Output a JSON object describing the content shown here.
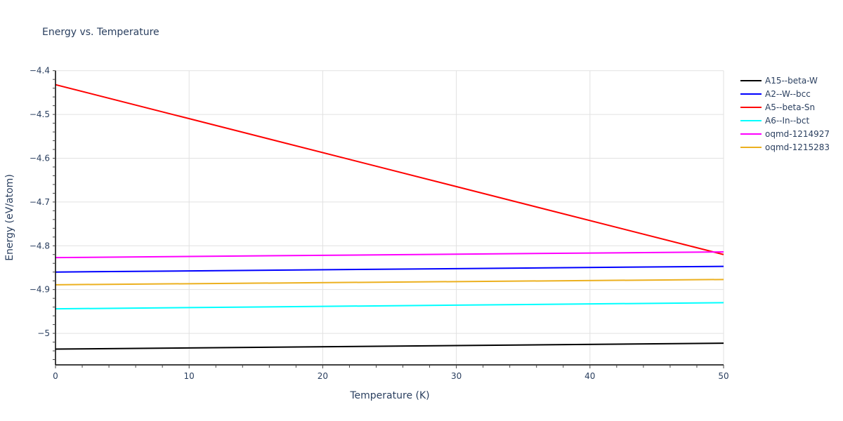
{
  "chart_data": {
    "type": "line",
    "title": "Energy vs. Temperature",
    "xlabel": "Temperature (K)",
    "ylabel": "Energy (eV/atom)",
    "xlim": [
      0,
      50
    ],
    "ylim": [
      -5.072,
      -4.4
    ],
    "x_ticks": [
      0,
      10,
      20,
      30,
      40,
      50
    ],
    "x_tick_labels": [
      "0",
      "10",
      "20",
      "30",
      "40",
      "50"
    ],
    "y_ticks": [
      -4.4,
      -4.5,
      -4.6,
      -4.7,
      -4.8,
      -4.9,
      -5.0
    ],
    "y_tick_labels": [
      "−4.4",
      "−4.5",
      "−4.6",
      "−4.7",
      "−4.8",
      "−4.9",
      "−5"
    ],
    "grid": true,
    "legend_position": "right",
    "x": [
      0,
      50
    ],
    "series": [
      {
        "name": "A15--beta-W",
        "color": "#000000",
        "values": [
          -5.036,
          -5.0225
        ]
      },
      {
        "name": "A2--W--bcc",
        "color": "#0000ff",
        "values": [
          -4.86,
          -4.847
        ]
      },
      {
        "name": "A5--beta-Sn",
        "color": "#ff0000",
        "values": [
          -4.432,
          -4.82
        ]
      },
      {
        "name": "A6--In--bct",
        "color": "#00ffff",
        "values": [
          -4.944,
          -4.93
        ]
      },
      {
        "name": "oqmd-1214927",
        "color": "#ff00ff",
        "values": [
          -4.827,
          -4.814
        ]
      },
      {
        "name": "oqmd-1215283",
        "color": "#ecb01f",
        "values": [
          -4.889,
          -4.877
        ]
      }
    ]
  }
}
